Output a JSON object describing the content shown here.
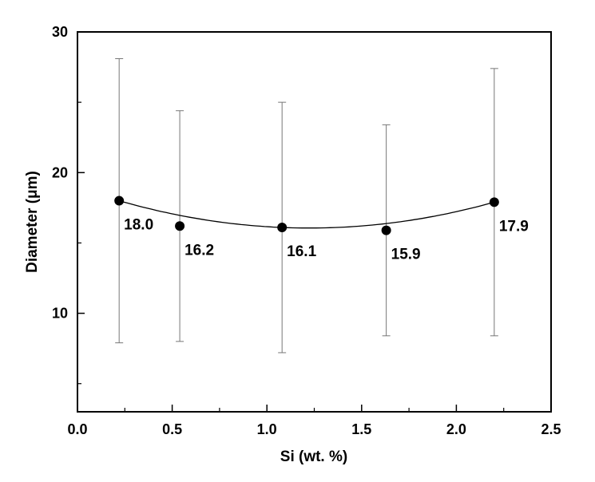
{
  "chart_data": {
    "type": "scatter",
    "xlabel": "Si (wt. %)",
    "ylabel": "Diameter (μm)",
    "xlim": [
      0.0,
      2.5
    ],
    "ylim": [
      3,
      30
    ],
    "x_ticks": [
      0.0,
      0.5,
      1.0,
      1.5,
      2.0,
      2.5
    ],
    "x_tick_labels": [
      "0.0",
      "0.5",
      "1.0",
      "1.5",
      "2.0",
      "2.5"
    ],
    "y_ticks": [
      10,
      20,
      30
    ],
    "y_tick_labels": [
      "10",
      "20",
      "30"
    ],
    "grid": false,
    "legend": "none",
    "series": [
      {
        "x": [
          0.22,
          0.54,
          1.08,
          1.63,
          2.2
        ],
        "y": [
          18.0,
          16.2,
          16.1,
          15.9,
          17.9
        ],
        "error_upper": [
          28.1,
          24.4,
          25.0,
          23.4,
          27.4
        ],
        "error_lower": [
          7.9,
          8.0,
          7.2,
          8.4,
          8.4
        ],
        "labels": [
          "18.0",
          "16.2",
          "16.1",
          "15.9",
          "17.9"
        ],
        "fit_curve": "smooth"
      }
    ]
  }
}
